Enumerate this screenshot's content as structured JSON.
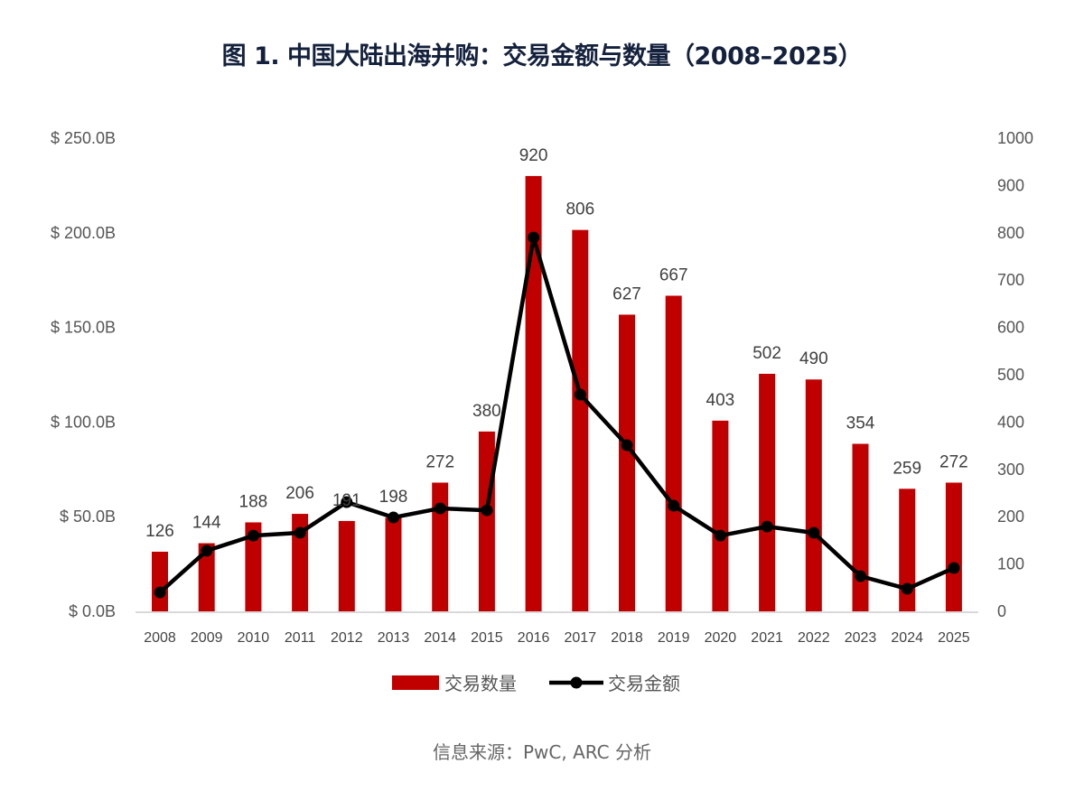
{
  "chart_data": {
    "type": "bar+line",
    "title": "图 1. 中国大陆出海并购：交易金额与数量（2008–2025）",
    "categories": [
      "2008",
      "2009",
      "2010",
      "2011",
      "2012",
      "2013",
      "2014",
      "2015",
      "2016",
      "2017",
      "2018",
      "2019",
      "2020",
      "2021",
      "2022",
      "2023",
      "2024",
      "2025"
    ],
    "series": [
      {
        "name": "交易数量",
        "type": "bar",
        "axis": "right",
        "color": "#c00000",
        "values": [
          126,
          144,
          188,
          206,
          191,
          198,
          272,
          380,
          920,
          806,
          627,
          667,
          403,
          502,
          490,
          354,
          259,
          272
        ]
      },
      {
        "name": "交易金额",
        "type": "line",
        "axis": "left",
        "color": "#000000",
        "values": [
          10,
          32,
          40,
          41.5,
          57.7,
          49.6,
          54.4,
          53.4,
          197.5,
          114.5,
          87.8,
          55.8,
          40,
          44.8,
          41.5,
          18.6,
          11.9,
          22.9
        ]
      }
    ],
    "left_axis": {
      "ylim": [
        0,
        250
      ],
      "ticks": [
        "$ 0.0B",
        "$ 50.0B",
        "$ 100.0B",
        "$ 150.0B",
        "$ 200.0B",
        "$ 250.0B"
      ]
    },
    "right_axis": {
      "ylim": [
        0,
        1000
      ],
      "ticks": [
        "0",
        "100",
        "200",
        "300",
        "400",
        "500",
        "600",
        "700",
        "800",
        "900",
        "1000"
      ]
    },
    "legend": {
      "placement": "bottom",
      "items": [
        "交易数量",
        "交易金额"
      ]
    },
    "source": "信息来源：PwC, ARC 分析"
  }
}
